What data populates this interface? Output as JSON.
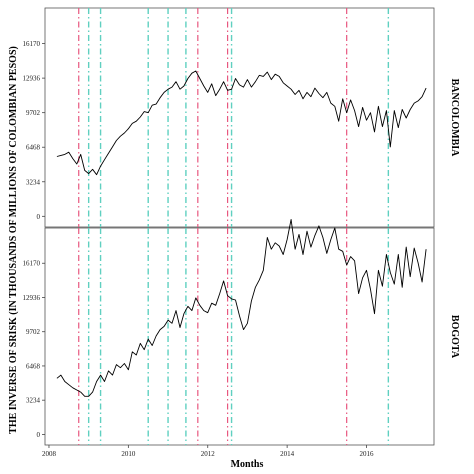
{
  "chart_data": {
    "type": "line",
    "xlabel": "Months",
    "ylabel": "THE INVERSE OF SRISK (IN THOUSANDS OF MILLIONS OF COLOMBIAN PESOS)",
    "x_ticks": [
      "2008",
      "2010",
      "2012",
      "2014",
      "2016"
    ],
    "x_tick_values": [
      2008,
      2010,
      2012,
      2014,
      2016
    ],
    "xlim": [
      2007.9,
      2017.7
    ],
    "y_ticks": [
      "0",
      "3234",
      "6468",
      "9702",
      "12936",
      "16170"
    ],
    "y_tick_values": [
      0,
      3234,
      6468,
      9702,
      12936,
      16170
    ],
    "grid": false,
    "vlines_pink": [
      2008.75,
      2011.75,
      2012.5,
      2015.5
    ],
    "vlines_teal": [
      2009.0,
      2009.3,
      2010.5,
      2011.0,
      2011.45,
      2012.6,
      2016.55
    ],
    "colors": {
      "line": "#000000",
      "pink": "#e8577f",
      "teal": "#5fd0c0"
    },
    "panels": [
      {
        "strip_label": "BANCOLOMBIA",
        "ylim": [
          -1000,
          19500
        ],
        "x": [
          2008.2,
          2008.3,
          2008.4,
          2008.5,
          2008.6,
          2008.7,
          2008.8,
          2008.9,
          2009.0,
          2009.1,
          2009.2,
          2009.3,
          2009.4,
          2009.5,
          2009.6,
          2009.7,
          2009.8,
          2009.9,
          2010.0,
          2010.1,
          2010.2,
          2010.3,
          2010.4,
          2010.5,
          2010.6,
          2010.7,
          2010.8,
          2010.9,
          2011.0,
          2011.1,
          2011.2,
          2011.3,
          2011.4,
          2011.5,
          2011.6,
          2011.7,
          2011.8,
          2011.9,
          2012.0,
          2012.1,
          2012.2,
          2012.3,
          2012.4,
          2012.5,
          2012.6,
          2012.7,
          2012.8,
          2012.9,
          2013.0,
          2013.1,
          2013.2,
          2013.3,
          2013.4,
          2013.5,
          2013.6,
          2013.7,
          2013.8,
          2013.9,
          2014.0,
          2014.1,
          2014.2,
          2014.3,
          2014.4,
          2014.5,
          2014.6,
          2014.7,
          2014.8,
          2014.9,
          2015.0,
          2015.1,
          2015.2,
          2015.3,
          2015.4,
          2015.5,
          2015.6,
          2015.7,
          2015.8,
          2015.9,
          2016.0,
          2016.1,
          2016.2,
          2016.3,
          2016.4,
          2016.5,
          2016.6,
          2016.7,
          2016.8,
          2016.9,
          2017.0,
          2017.1,
          2017.2,
          2017.3,
          2017.4,
          2017.5
        ],
        "y": [
          5600,
          5700,
          5800,
          6000,
          5400,
          4900,
          5800,
          4300,
          4000,
          4400,
          3900,
          4700,
          5300,
          5900,
          6500,
          7100,
          7500,
          7800,
          8200,
          8700,
          8900,
          9300,
          9800,
          9700,
          10400,
          10500,
          11100,
          11600,
          11900,
          12100,
          12600,
          11900,
          12200,
          12900,
          13400,
          13600,
          12900,
          12200,
          11600,
          12400,
          11300,
          11900,
          12600,
          11800,
          11900,
          12900,
          12300,
          12100,
          12800,
          12100,
          12600,
          13200,
          13100,
          13500,
          12800,
          13300,
          13100,
          12500,
          12200,
          11900,
          11400,
          11800,
          11000,
          11600,
          11200,
          12000,
          11500,
          11100,
          11600,
          10600,
          10300,
          8900,
          11000,
          9700,
          10900,
          9900,
          8400,
          10200,
          9000,
          9700,
          7900,
          10300,
          8400,
          9900,
          6500,
          9900,
          8300,
          10000,
          9200,
          10000,
          10600,
          10800,
          11200,
          12000
        ]
      },
      {
        "strip_label": "BOGOTA",
        "ylim": [
          -1000,
          19500
        ],
        "x": [
          2008.2,
          2008.3,
          2008.4,
          2008.5,
          2008.6,
          2008.7,
          2008.8,
          2008.9,
          2009.0,
          2009.1,
          2009.2,
          2009.3,
          2009.4,
          2009.5,
          2009.6,
          2009.7,
          2009.8,
          2009.9,
          2010.0,
          2010.1,
          2010.2,
          2010.3,
          2010.4,
          2010.5,
          2010.6,
          2010.7,
          2010.8,
          2010.9,
          2011.0,
          2011.1,
          2011.2,
          2011.3,
          2011.4,
          2011.5,
          2011.6,
          2011.7,
          2011.8,
          2011.9,
          2012.0,
          2012.1,
          2012.2,
          2012.3,
          2012.4,
          2012.5,
          2012.6,
          2012.7,
          2012.8,
          2012.9,
          2013.0,
          2013.1,
          2013.2,
          2013.3,
          2013.4,
          2013.5,
          2013.6,
          2013.7,
          2013.8,
          2013.9,
          2014.0,
          2014.1,
          2014.2,
          2014.3,
          2014.4,
          2014.5,
          2014.6,
          2014.7,
          2014.8,
          2014.9,
          2015.0,
          2015.1,
          2015.2,
          2015.3,
          2015.4,
          2015.5,
          2015.6,
          2015.7,
          2015.8,
          2015.9,
          2016.0,
          2016.1,
          2016.2,
          2016.3,
          2016.4,
          2016.5,
          2016.6,
          2016.7,
          2016.8,
          2016.9,
          2017.0,
          2017.1,
          2017.2,
          2017.3,
          2017.4,
          2017.5
        ],
        "y": [
          5300,
          5600,
          5000,
          4700,
          4400,
          4200,
          4000,
          3600,
          3600,
          4000,
          5000,
          5600,
          5000,
          6000,
          5600,
          6600,
          6300,
          6700,
          6100,
          7800,
          7500,
          8600,
          8000,
          9000,
          8400,
          9300,
          9900,
          10200,
          10800,
          10500,
          11700,
          10100,
          11400,
          12100,
          11700,
          12900,
          12200,
          11700,
          11500,
          12400,
          12200,
          13300,
          14500,
          13100,
          12800,
          12700,
          11200,
          9900,
          10500,
          12600,
          13900,
          14600,
          15500,
          18600,
          17500,
          18100,
          17800,
          17000,
          18400,
          20300,
          17500,
          18900,
          17000,
          19200,
          17700,
          18800,
          19700,
          18600,
          17100,
          18400,
          19500,
          17500,
          17300,
          16000,
          16800,
          16400,
          13300,
          14800,
          15500,
          13700,
          11400,
          15500,
          14000,
          17000,
          15300,
          14200,
          17000,
          13900,
          17700,
          14900,
          17600,
          16200,
          14400,
          17500
        ]
      }
    ]
  }
}
